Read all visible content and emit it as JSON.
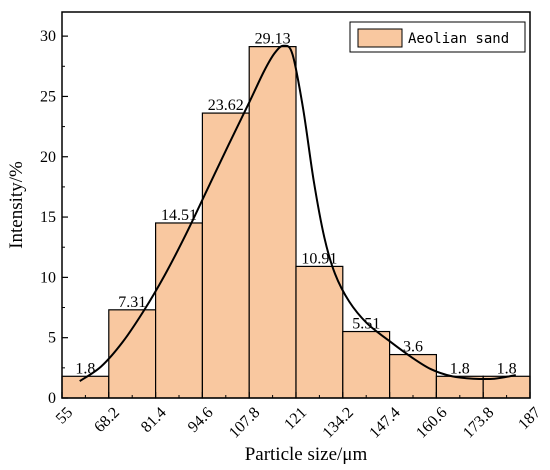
{
  "chart_data": {
    "type": "bar",
    "xlabel": "Particle size/μm",
    "ylabel": "Intensity/%",
    "bin_edges": [
      55,
      68.2,
      81.4,
      94.6,
      107.8,
      121,
      134.2,
      147.4,
      160.6,
      173.8,
      187
    ],
    "x_tick_labels": [
      "55",
      "68.2",
      "81.4",
      "94.6",
      "107.8",
      "121",
      "134.2",
      "147.4",
      "160.6",
      "173.8",
      "187"
    ],
    "values": [
      1.8,
      7.31,
      14.51,
      23.62,
      29.13,
      10.91,
      5.51,
      3.6,
      1.8,
      1.8
    ],
    "data_labels": [
      "1.8",
      "7.31",
      "14.51",
      "23.62",
      "29.13",
      "10.91",
      "5.51",
      "3.6",
      "1.8",
      "1.8"
    ],
    "xlim": [
      55,
      187
    ],
    "ylim": [
      0,
      32
    ],
    "y_ticks": [
      0,
      5,
      10,
      15,
      20,
      25,
      30
    ],
    "y_tick_labels": [
      "0",
      "5",
      "10",
      "15",
      "20",
      "25",
      "30"
    ],
    "series": [
      {
        "name": "Aeolian sand",
        "color": "#f9c8a0"
      }
    ],
    "fit_curve": {
      "color": "#000000",
      "points": [
        [
          60,
          1.4
        ],
        [
          66,
          2.6
        ],
        [
          72,
          4.6
        ],
        [
          78,
          7.2
        ],
        [
          84,
          10.2
        ],
        [
          90,
          13.6
        ],
        [
          96,
          17.3
        ],
        [
          102,
          21.0
        ],
        [
          107.8,
          24.5
        ],
        [
          112,
          27.1
        ],
        [
          115,
          28.6
        ],
        [
          117.5,
          29.2
        ],
        [
          120,
          28.5
        ],
        [
          123,
          24.0
        ],
        [
          126,
          18.0
        ],
        [
          129,
          13.3
        ],
        [
          132,
          10.3
        ],
        [
          136,
          8.0
        ],
        [
          141,
          6.2
        ],
        [
          147,
          4.8
        ],
        [
          153,
          3.5
        ],
        [
          159,
          2.4
        ],
        [
          165,
          1.8
        ],
        [
          171,
          1.6
        ],
        [
          177,
          1.6
        ],
        [
          183,
          1.9
        ]
      ]
    },
    "legend_position": "top-right",
    "bar_edge_color": "#000000"
  }
}
